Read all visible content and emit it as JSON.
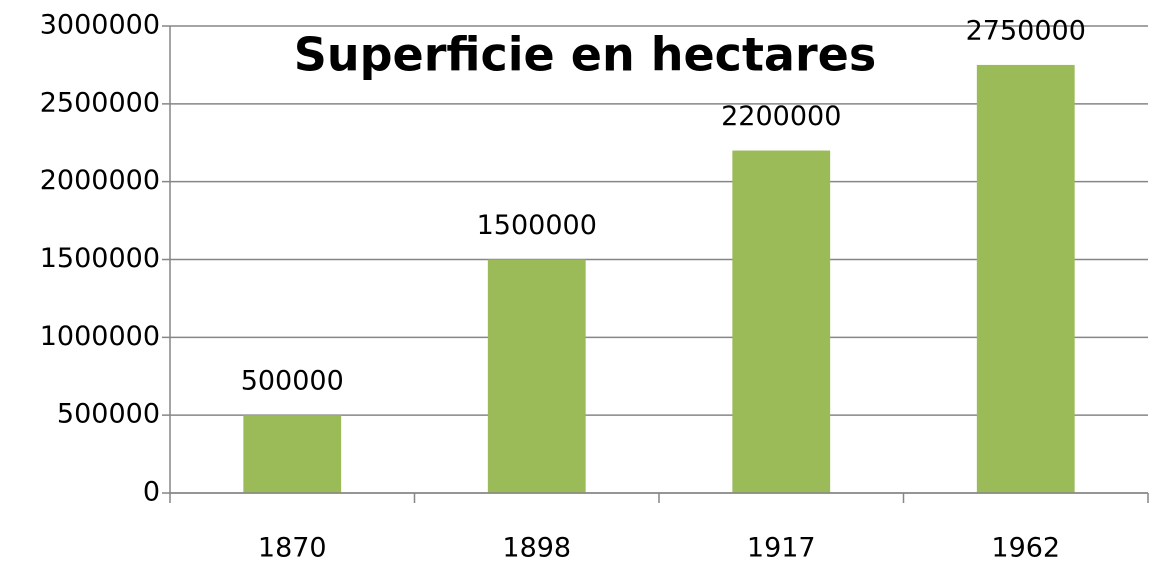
{
  "chart_data": {
    "type": "bar",
    "title": "Superficie en hectares",
    "categories": [
      "1870",
      "1898",
      "1917",
      "1962"
    ],
    "values": [
      500000,
      1500000,
      2200000,
      2750000
    ],
    "color": "#9bbb59",
    "ylim": [
      0,
      3000000
    ],
    "yticks": [
      0,
      500000,
      1000000,
      1500000,
      2000000,
      2500000,
      3000000
    ],
    "grid": true
  }
}
